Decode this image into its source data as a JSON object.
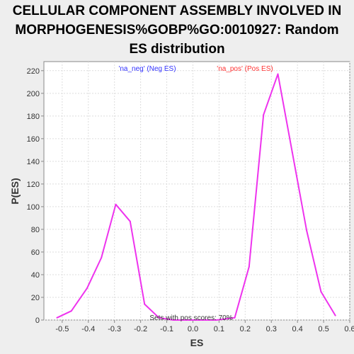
{
  "chart_data": {
    "type": "line",
    "title_lines": [
      "CELLULAR COMPONENT ASSEMBLY INVOLVED IN",
      "MORPHOGENESIS%GOBP%GO:0010927: Random",
      "ES distribution"
    ],
    "xlabel": "ES",
    "ylabel": "P(ES)",
    "xlim": [
      -0.57,
      0.6
    ],
    "ylim": [
      0,
      228
    ],
    "x_ticks": [
      -0.5,
      -0.4,
      -0.3,
      -0.2,
      -0.1,
      0.0,
      0.1,
      0.2,
      0.3,
      0.4,
      0.5,
      0.6
    ],
    "x_tick_labels": [
      "-0.5",
      "-0.4",
      "-0.3",
      "-0.2",
      "-0.1",
      "0.0",
      "0.1",
      "0.2",
      "0.3",
      "0.4",
      "0.5",
      "0.6"
    ],
    "y_ticks": [
      0,
      20,
      40,
      60,
      80,
      100,
      120,
      140,
      160,
      180,
      200,
      220
    ],
    "y_tick_labels": [
      "0",
      "20",
      "40",
      "60",
      "80",
      "100",
      "120",
      "140",
      "160",
      "180",
      "200",
      "220"
    ],
    "grid": true,
    "series": [
      {
        "color": "#ee33ee",
        "x": [
          -0.52,
          -0.465,
          -0.405,
          -0.35,
          -0.295,
          -0.24,
          -0.185,
          -0.13,
          -0.075,
          -0.02,
          0.035,
          0.09,
          0.16,
          0.215,
          0.27,
          0.325,
          0.38,
          0.435,
          0.49,
          0.545
        ],
        "y": [
          2,
          8,
          28,
          55,
          102,
          87,
          14,
          2,
          0,
          0,
          0,
          0,
          2,
          47,
          181,
          217,
          148,
          79,
          25,
          4
        ]
      }
    ],
    "legend": [
      {
        "text": "'na_neg' (Neg ES)",
        "color": "#3333ff"
      },
      {
        "text": "'na_pos' (Pos ES)",
        "color": "#ff3333"
      }
    ],
    "annotation": "Sets with pos scores: 70%"
  }
}
